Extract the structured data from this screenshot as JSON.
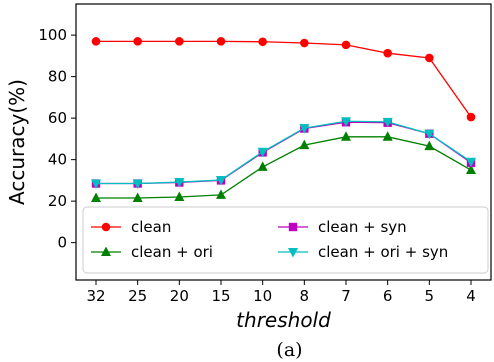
{
  "chart_data": {
    "type": "line",
    "categories": [
      "32",
      "25",
      "20",
      "15",
      "10",
      "8",
      "7",
      "6",
      "5",
      "4"
    ],
    "xlabel": "threshold",
    "ylabel": "Accuracy(%)",
    "ylim": [
      -18,
      115
    ],
    "yticks": [
      0,
      20,
      40,
      60,
      80,
      100
    ],
    "grid": false,
    "legend_position": "bottom",
    "caption": "(a)",
    "series": [
      {
        "name": "clean",
        "color": "#ff0000",
        "marker": "circle",
        "values": [
          97.0,
          97.0,
          97.0,
          97.0,
          96.8,
          96.2,
          95.3,
          91.3,
          89.0,
          60.5
        ]
      },
      {
        "name": "clean + ori",
        "color": "#008000",
        "marker": "triangle-up",
        "values": [
          21.5,
          21.5,
          22.0,
          23.0,
          36.5,
          47.0,
          51.0,
          51.0,
          46.5,
          35.0
        ]
      },
      {
        "name": "clean + syn",
        "color": "#bf00bf",
        "marker": "square",
        "values": [
          28.5,
          28.5,
          29.0,
          30.0,
          43.5,
          55.0,
          58.0,
          57.8,
          52.5,
          38.5
        ]
      },
      {
        "name": "clean + ori + syn",
        "color": "#00bfbf",
        "marker": "triangle-down",
        "values": [
          28.5,
          28.5,
          29.2,
          30.2,
          43.8,
          55.2,
          58.5,
          58.2,
          52.5,
          39.0
        ]
      }
    ]
  }
}
